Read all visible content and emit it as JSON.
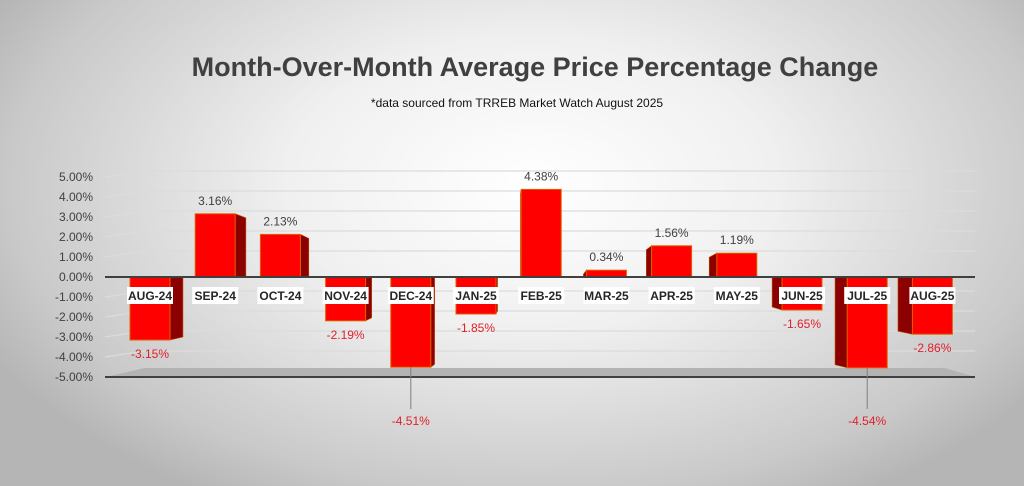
{
  "chart_data": {
    "type": "bar",
    "title": "Month-Over-Month Average Price Percentage Change",
    "subtitle": "*data sourced from TRREB Market Watch August 2025",
    "categories": [
      "AUG-24",
      "SEP-24",
      "OCT-24",
      "NOV-24",
      "DEC-24",
      "JAN-25",
      "FEB-25",
      "MAR-25",
      "APR-25",
      "MAY-25",
      "JUN-25",
      "JUL-25",
      "AUG-25"
    ],
    "values": [
      -3.15,
      3.16,
      2.13,
      -2.19,
      -4.51,
      -1.85,
      4.38,
      0.34,
      1.56,
      1.19,
      -1.65,
      -4.54,
      -2.86
    ],
    "data_labels": [
      "-3.15%",
      "3.16%",
      "2.13%",
      "-2.19%",
      "-4.51%",
      "-1.85%",
      "4.38%",
      "0.34%",
      "1.56%",
      "1.19%",
      "-1.65%",
      "-4.54%",
      "-2.86%"
    ],
    "yticks": [
      "5.00%",
      "4.00%",
      "3.00%",
      "2.00%",
      "1.00%",
      "0.00%",
      "-1.00%",
      "-2.00%",
      "-3.00%",
      "-4.00%",
      "-5.00%"
    ],
    "ylim": [
      -5,
      5
    ],
    "xlabel": "",
    "ylabel": "",
    "grid": true,
    "colors": {
      "bar": "#ff0000",
      "bar_side": "#8b0000",
      "positive_label": "#404040",
      "negative_label": "#e0202a"
    }
  }
}
